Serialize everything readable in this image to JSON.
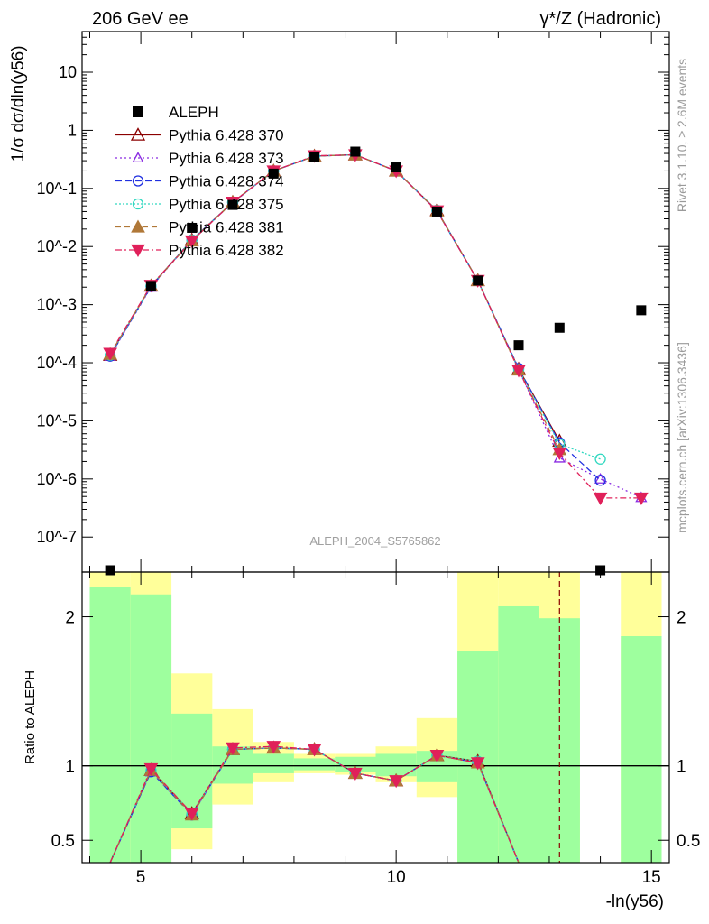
{
  "header": {
    "left": "206 GeV ee",
    "right": "γ*/Z (Hadronic)"
  },
  "side_labels": {
    "rivet": "Rivet 3.1.10, ≥ 2.6M events",
    "mcplots": "mcplots.cern.ch [arXiv:1306.3436]"
  },
  "watermark": "ALEPH_2004_S5765862",
  "colors": {
    "data": "#000000",
    "s370": "#8b0000",
    "s373": "#8a2be2",
    "s374": "#2030e0",
    "s375": "#30d8c0",
    "s381": "#b07838",
    "s382": "#e0205a",
    "band_inner": "#9eff9e",
    "band_outer": "#ffff9a"
  },
  "chart_data": [
    {
      "type": "line",
      "panel": "main",
      "ylabel": "1/σ dσ/dln(y56)",
      "xlabel": "-ln(y56)",
      "xlim": [
        3.85,
        15.35
      ],
      "ylim": [
        2.5e-08,
        50
      ],
      "yscale": "log",
      "ytick_labels": [
        "10^-7",
        "10^-6",
        "10^-5",
        "10^-4",
        "10^-3",
        "10^-2",
        "10^-1",
        "1",
        "10"
      ],
      "legend_position": "top-left",
      "legend": [
        "ALEPH",
        "Pythia 6.428 370",
        "Pythia 6.428 373",
        "Pythia 6.428 374",
        "Pythia 6.428 375",
        "Pythia 6.428 381",
        "Pythia 6.428 382"
      ],
      "data_series": {
        "name": "ALEPH",
        "x": [
          4.4,
          5.2,
          6.0,
          6.8,
          7.6,
          8.4,
          9.2,
          10.0,
          10.8,
          11.6,
          12.4,
          13.2,
          14.0,
          14.8
        ],
        "y": [
          2.5e-08,
          0.0021,
          0.021,
          0.052,
          0.18,
          0.35,
          0.43,
          0.23,
          0.04,
          0.0026,
          0.0002,
          0.0004,
          2.5e-08,
          0.0008
        ]
      },
      "series": [
        {
          "name": "Pythia 6.428 370",
          "x": [
            4.4,
            5.2,
            6.0,
            6.8,
            7.6,
            8.4,
            9.2,
            10.0,
            10.8,
            11.6,
            12.4,
            13.2,
            14.0,
            14.8
          ],
          "y": [
            0.000135,
            0.0021,
            0.013,
            0.058,
            0.2,
            0.36,
            0.38,
            0.2,
            0.042,
            0.0026,
            7.8e-05,
            4.5e-06,
            null,
            null
          ]
        },
        {
          "name": "Pythia 6.428 373",
          "x": [
            4.4,
            5.2,
            6.0,
            6.8,
            7.6,
            8.4,
            9.2,
            10.0,
            10.8,
            11.6,
            12.4,
            13.2,
            14.0,
            14.8
          ],
          "y": [
            0.00013,
            0.002,
            0.013,
            0.057,
            0.2,
            0.36,
            0.38,
            0.2,
            0.041,
            0.0026,
            7.6e-05,
            2.3e-06,
            1e-06,
            4.8e-07
          ]
        },
        {
          "name": "Pythia 6.428 374",
          "x": [
            4.4,
            5.2,
            6.0,
            6.8,
            7.6,
            8.4,
            9.2,
            10.0,
            10.8,
            11.6,
            12.4,
            13.2,
            14.0,
            14.8
          ],
          "y": [
            0.00013,
            0.00205,
            0.013,
            0.057,
            0.2,
            0.36,
            0.38,
            0.2,
            0.041,
            0.0026,
            8e-05,
            4.2e-06,
            9.5e-07,
            null
          ]
        },
        {
          "name": "Pythia 6.428 375",
          "x": [
            4.4,
            5.2,
            6.0,
            6.8,
            7.6,
            8.4,
            9.2,
            10.0,
            10.8,
            11.6,
            12.4,
            13.2,
            14.0,
            14.8
          ],
          "y": [
            0.000135,
            0.0021,
            0.013,
            0.058,
            0.2,
            0.36,
            0.38,
            0.2,
            0.042,
            0.0026,
            7.6e-05,
            4e-06,
            2.2e-06,
            null
          ]
        },
        {
          "name": "Pythia 6.428 381",
          "x": [
            4.4,
            5.2,
            6.0,
            6.8,
            7.6,
            8.4,
            9.2,
            10.0,
            10.8,
            11.6,
            12.4,
            13.2,
            14.0,
            14.8
          ],
          "y": [
            0.00014,
            0.0021,
            0.0125,
            0.058,
            0.2,
            0.36,
            0.38,
            0.2,
            0.041,
            0.0026,
            7.5e-05,
            3.2e-06,
            null,
            null
          ]
        },
        {
          "name": "Pythia 6.428 382",
          "x": [
            4.4,
            5.2,
            6.0,
            6.8,
            7.6,
            8.4,
            9.2,
            10.0,
            10.8,
            11.6,
            12.4,
            13.2,
            14.0,
            14.8
          ],
          "y": [
            0.000145,
            0.00215,
            0.0125,
            0.058,
            0.2,
            0.365,
            0.38,
            0.2,
            0.041,
            0.0026,
            7.4e-05,
            2.8e-06,
            4.7e-07,
            4.7e-07
          ]
        }
      ]
    },
    {
      "type": "line",
      "panel": "ratio",
      "ylabel": "Ratio to ALEPH",
      "xlabel": "-ln(y56)",
      "xlim": [
        3.85,
        15.35
      ],
      "ylim": [
        0.35,
        2.3
      ],
      "yticks": [
        0.5,
        1,
        2
      ],
      "ytick_labels": [
        "0.5",
        "1",
        "2"
      ],
      "xticks": [
        5,
        10,
        15
      ],
      "xtick_labels": [
        "5",
        "10",
        "15"
      ],
      "bands": [
        {
          "x": [
            4.0,
            4.8
          ],
          "inner": [
            0.0,
            2.2
          ],
          "outer": [
            0.0,
            2.3
          ]
        },
        {
          "x": [
            4.8,
            5.6
          ],
          "inner": [
            0.0,
            2.15
          ],
          "outer": [
            0.0,
            2.3
          ]
        },
        {
          "x": [
            5.6,
            6.4
          ],
          "inner": [
            0.58,
            1.35
          ],
          "outer": [
            0.44,
            1.62
          ]
        },
        {
          "x": [
            6.4,
            7.2
          ],
          "inner": [
            0.88,
            1.13
          ],
          "outer": [
            0.74,
            1.38
          ]
        },
        {
          "x": [
            7.2,
            8.0
          ],
          "inner": [
            0.95,
            1.08
          ],
          "outer": [
            0.89,
            1.16
          ]
        },
        {
          "x": [
            8.0,
            8.8
          ],
          "inner": [
            0.97,
            1.05
          ],
          "outer": [
            0.95,
            1.08
          ]
        },
        {
          "x": [
            8.8,
            9.6
          ],
          "inner": [
            0.96,
            1.06
          ],
          "outer": [
            0.94,
            1.08
          ]
        },
        {
          "x": [
            9.6,
            10.4
          ],
          "inner": [
            0.93,
            1.08
          ],
          "outer": [
            0.89,
            1.13
          ]
        },
        {
          "x": [
            10.4,
            11.2
          ],
          "inner": [
            0.89,
            1.1
          ],
          "outer": [
            0.79,
            1.32
          ]
        },
        {
          "x": [
            11.2,
            12.0
          ],
          "inner": [
            0.0,
            1.77
          ],
          "outer": [
            0.0,
            2.3
          ]
        },
        {
          "x": [
            12.0,
            12.8
          ],
          "inner": [
            0.0,
            2.07
          ],
          "outer": [
            0.0,
            2.3
          ]
        },
        {
          "x": [
            12.8,
            13.6
          ],
          "inner": [
            0.0,
            1.99
          ],
          "outer": [
            0.0,
            2.3
          ]
        },
        {
          "x": [
            14.4,
            15.2
          ],
          "inner": [
            0.0,
            1.87
          ],
          "outer": [
            0.0,
            2.3
          ]
        }
      ],
      "series": [
        {
          "name": "Pythia 6.428 370",
          "x": [
            4.4,
            5.2,
            6.0,
            6.8,
            7.6,
            8.4,
            9.2,
            10.0,
            10.8,
            11.6,
            12.4
          ],
          "y": [
            0.0,
            0.97,
            0.68,
            1.11,
            1.12,
            1.11,
            0.95,
            0.9,
            1.07,
            1.03,
            0.0
          ]
        },
        {
          "name": "Pythia 6.428 373",
          "x": [
            4.4,
            5.2,
            6.0,
            6.8,
            7.6,
            8.4,
            9.2,
            10.0,
            10.8,
            11.6,
            12.4
          ],
          "y": [
            0.0,
            0.96,
            0.67,
            1.11,
            1.12,
            1.11,
            0.95,
            0.9,
            1.07,
            1.02,
            0.35
          ]
        },
        {
          "name": "Pythia 6.428 374",
          "x": [
            4.4,
            5.2,
            6.0,
            6.8,
            7.6,
            8.4,
            9.2,
            10.0,
            10.8,
            11.6,
            12.4
          ],
          "y": [
            0.0,
            0.96,
            0.67,
            1.11,
            1.12,
            1.11,
            0.95,
            0.9,
            1.07,
            1.02,
            0.35
          ]
        },
        {
          "name": "Pythia 6.428 375",
          "x": [
            4.4,
            5.2,
            6.0,
            6.8,
            7.6,
            8.4,
            9.2,
            10.0,
            10.8,
            11.6,
            12.4
          ],
          "y": [
            0.0,
            0.97,
            0.68,
            1.11,
            1.12,
            1.11,
            0.95,
            0.9,
            1.07,
            1.03,
            0.35
          ]
        },
        {
          "name": "Pythia 6.428 381",
          "x": [
            4.4,
            5.2,
            6.0,
            6.8,
            7.6,
            8.4,
            9.2,
            10.0,
            10.8,
            11.6,
            12.4
          ],
          "y": [
            0.0,
            0.97,
            0.67,
            1.11,
            1.12,
            1.11,
            0.95,
            0.9,
            1.07,
            1.02,
            0.0
          ]
        },
        {
          "name": "Pythia 6.428 382",
          "x": [
            4.4,
            5.2,
            6.0,
            6.8,
            7.6,
            8.4,
            9.2,
            10.0,
            10.8,
            11.6,
            12.4
          ],
          "y": [
            0.0,
            0.98,
            0.68,
            1.12,
            1.13,
            1.11,
            0.95,
            0.9,
            1.07,
            1.02,
            0.0
          ]
        }
      ]
    }
  ]
}
